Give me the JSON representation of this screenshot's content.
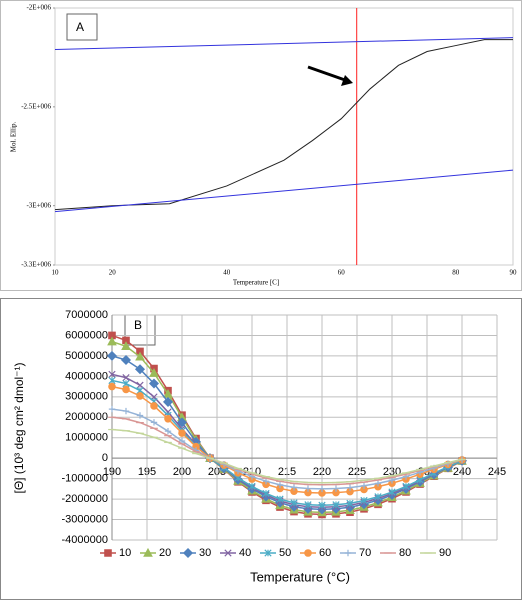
{
  "chart_data": [
    {
      "type": "line",
      "annotation": "A",
      "x_label": "Temperature [C]",
      "y_label": "Mol. Ellip.",
      "xlim": [
        10,
        90
      ],
      "xticks": [
        10,
        20,
        40,
        60,
        80,
        90
      ],
      "ylim": [
        -3300000,
        -2000000
      ],
      "yticks": [
        {
          "value": -2000000,
          "label": "-2E+006"
        },
        {
          "value": -2500000,
          "label": "-2.5E+006"
        },
        {
          "value": -3000000,
          "label": "-3E+006"
        },
        {
          "value": -3300000,
          "label": "-3.3E+006"
        }
      ],
      "vline": {
        "value": 62.7,
        "color": "#ff2020"
      },
      "series": [
        {
          "color": "#222222",
          "x": [
            10,
            20,
            30,
            40,
            50,
            55,
            60,
            65,
            70,
            75,
            80,
            85,
            90
          ],
          "values": [
            -3020000,
            -3000000,
            -2990000,
            -2900000,
            -2770000,
            -2670000,
            -2560000,
            -2410000,
            -2290000,
            -2220000,
            -2190000,
            -2160000,
            -2160000
          ]
        },
        {
          "color": "#3333dd",
          "x": [
            10,
            90
          ],
          "values": [
            -2210000,
            -2150000
          ]
        },
        {
          "color": "#3333dd",
          "x": [
            10,
            90
          ],
          "values": [
            -3030000,
            -2820000
          ]
        }
      ]
    },
    {
      "type": "line",
      "annotation": "B",
      "x_label": "Temperature (°C)",
      "y_label": "[Θ] (10³ deg cm² dmol⁻¹)",
      "xlim": [
        190,
        245
      ],
      "xticks": [
        190,
        195,
        200,
        205,
        210,
        215,
        220,
        225,
        230,
        235,
        240,
        245
      ],
      "ylim": [
        -4000000,
        7000000
      ],
      "yticks": [
        -4000000,
        -3000000,
        -2000000,
        -1000000,
        0,
        1000000,
        2000000,
        3000000,
        4000000,
        5000000,
        6000000,
        7000000
      ],
      "grid": true,
      "x": [
        190,
        192,
        194,
        196,
        198,
        200,
        202,
        204,
        206,
        208,
        210,
        212,
        214,
        216,
        218,
        220,
        222,
        224,
        226,
        228,
        230,
        232,
        234,
        236,
        238,
        240
      ],
      "series": [
        {
          "name": "10",
          "color": "#c0504d",
          "marker": "square",
          "values": [
            6000000,
            5760000,
            5220000,
            4380000,
            3300000,
            2100000,
            960000,
            0,
            -550000,
            -1155000,
            -1650000,
            -2062500,
            -2392500,
            -2612500,
            -2722500,
            -2750000,
            -2722500,
            -2640000,
            -2475000,
            -2255000,
            -1980000,
            -1650000,
            -1265000,
            -880000,
            -495000,
            -137500
          ]
        },
        {
          "name": "20",
          "color": "#9bbb59",
          "marker": "triangle",
          "values": [
            5700000,
            5472000,
            4959000,
            4161000,
            3135000,
            1995000,
            912000,
            0,
            -530000,
            -1113000,
            -1590000,
            -1987500,
            -2305500,
            -2517500,
            -2623500,
            -2650000,
            -2623500,
            -2544000,
            -2385000,
            -2173000,
            -1908000,
            -1590000,
            -1219000,
            -848000,
            -477000,
            -132500
          ]
        },
        {
          "name": "30",
          "color": "#4f81bd",
          "marker": "diamond",
          "values": [
            5000000,
            4800000,
            4350000,
            3650000,
            2750000,
            1750000,
            800000,
            0,
            -500000,
            -1050000,
            -1500000,
            -1875000,
            -2175000,
            -2375000,
            -2475000,
            -2500000,
            -2475000,
            -2400000,
            -2250000,
            -2050000,
            -1800000,
            -1500000,
            -1150000,
            -800000,
            -450000,
            -125000
          ]
        },
        {
          "name": "40",
          "color": "#8064a2",
          "marker": "x",
          "values": [
            4100000,
            3936000,
            3567000,
            2993000,
            2255000,
            1435000,
            656000,
            0,
            -480000,
            -1008000,
            -1440000,
            -1800000,
            -2088000,
            -2280000,
            -2376000,
            -2400000,
            -2376000,
            -2304000,
            -2160000,
            -1968000,
            -1728000,
            -1440000,
            -1104000,
            -768000,
            -432000,
            -120000
          ]
        },
        {
          "name": "50",
          "color": "#4bacc6",
          "marker": "asterisk",
          "values": [
            3800000,
            3648000,
            3306000,
            2774000,
            2090000,
            1330000,
            608000,
            0,
            -460000,
            -966000,
            -1380000,
            -1725000,
            -2001000,
            -2185000,
            -2277000,
            -2300000,
            -2277000,
            -2208000,
            -2070000,
            -1886000,
            -1656000,
            -1380000,
            -1058000,
            -736000,
            -414000,
            -115000
          ]
        },
        {
          "name": "60",
          "color": "#f79646",
          "marker": "circle",
          "values": [
            3500000,
            3360000,
            3045000,
            2555000,
            1925000,
            1225000,
            560000,
            0,
            -340000,
            -714000,
            -1020000,
            -1275000,
            -1479000,
            -1615000,
            -1683000,
            -1700000,
            -1683000,
            -1632000,
            -1530000,
            -1394000,
            -1224000,
            -1020000,
            -782000,
            -544000,
            -306000,
            -85000
          ]
        },
        {
          "name": "70",
          "color": "#95b3d7",
          "marker": "plus",
          "values": [
            2400000,
            2304000,
            2088000,
            1752000,
            1320000,
            840000,
            384000,
            0,
            -300000,
            -630000,
            -900000,
            -1125000,
            -1305000,
            -1425000,
            -1485000,
            -1500000,
            -1485000,
            -1440000,
            -1350000,
            -1230000,
            -1080000,
            -900000,
            -690000,
            -480000,
            -270000,
            -75000
          ]
        },
        {
          "name": "80",
          "color": "#d99694",
          "marker": "dash",
          "values": [
            2000000,
            1920000,
            1740000,
            1460000,
            1100000,
            700000,
            320000,
            0,
            -260000,
            -546000,
            -780000,
            -975000,
            -1131000,
            -1235000,
            -1287000,
            -1300000,
            -1287000,
            -1248000,
            -1170000,
            -1066000,
            -936000,
            -780000,
            -598000,
            -416000,
            -234000,
            -65000
          ]
        },
        {
          "name": "90",
          "color": "#c3d69b",
          "marker": "dash",
          "values": [
            1400000,
            1344000,
            1218000,
            1022000,
            770000,
            490000,
            224000,
            0,
            -240000,
            -504000,
            -720000,
            -900000,
            -1044000,
            -1140000,
            -1188000,
            -1200000,
            -1188000,
            -1152000,
            -1080000,
            -984000,
            -864000,
            -720000,
            -552000,
            -384000,
            -216000,
            -60000
          ]
        }
      ]
    }
  ]
}
